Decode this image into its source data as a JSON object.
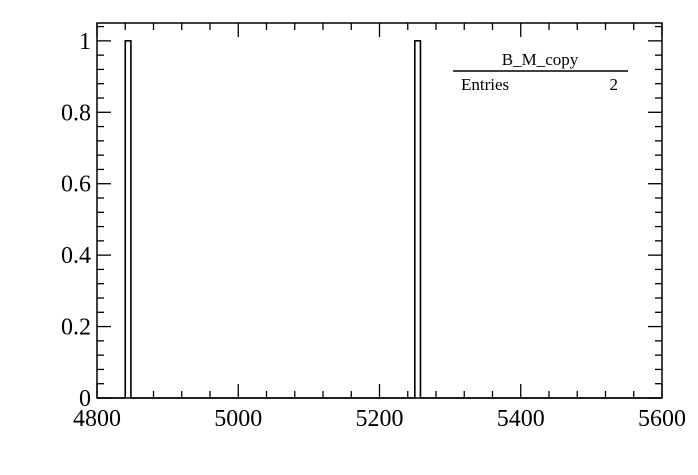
{
  "chart_data": {
    "type": "bar",
    "subtype": "histogram",
    "x": [
      4840,
      5250
    ],
    "bin_width": 8,
    "values": [
      1,
      1
    ],
    "xlim": [
      4800,
      5600
    ],
    "ylim": [
      0,
      1.05
    ],
    "x_ticks": [
      4800,
      5000,
      5200,
      5400,
      5600
    ],
    "x_tick_labels": [
      "4800",
      "5000",
      "5200",
      "5400",
      "5600"
    ],
    "y_ticks": [
      0,
      0.2,
      0.4,
      0.6,
      0.8,
      1
    ],
    "y_tick_labels": [
      "0",
      "0.2",
      "0.4",
      "0.6",
      "0.8",
      "1"
    ],
    "title": "",
    "xlabel": "",
    "ylabel": "",
    "grid": false,
    "legend": "none",
    "colors": {
      "line": "#000000",
      "background": "#ffffff"
    }
  },
  "stats_box": {
    "title": "B_M_copy",
    "entries_label": "Entries",
    "entries_value": "2",
    "placement": "top-right"
  }
}
